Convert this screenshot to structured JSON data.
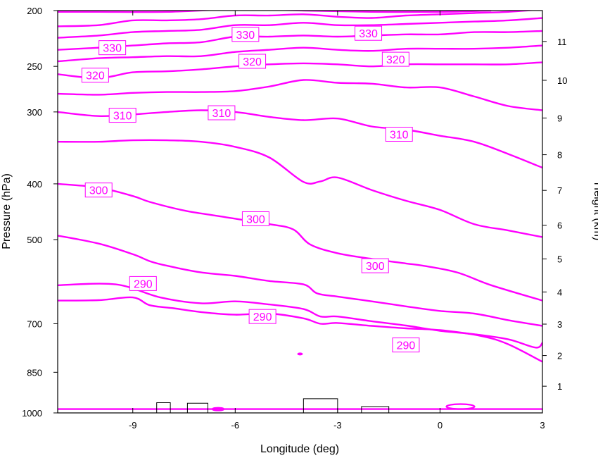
{
  "chart_data": {
    "type": "line",
    "plot": "contour",
    "xlabel": "Longitude (deg)",
    "ylabel_left": "Pressure (hPa)",
    "ylabel_right": "Height (km)",
    "xlim": [
      -11.2,
      3
    ],
    "ylim_pressure": [
      1000,
      200
    ],
    "y_scale": "log pressure",
    "x_ticks": [
      -9,
      -6,
      -3,
      0,
      3
    ],
    "pressure_ticks": [
      200,
      250,
      300,
      400,
      500,
      700,
      850,
      1000
    ],
    "height_ticks": [
      1,
      2,
      3,
      4,
      5,
      6,
      7,
      8,
      9,
      10,
      11
    ],
    "grid": false,
    "line_color": "#ff00ff",
    "terrain_color": "#000000",
    "series": [
      {
        "values": [
          [
            -11.2,
            985
          ],
          [
            -9,
            985
          ],
          [
            -6,
            985
          ],
          [
            -3,
            985
          ],
          [
            0,
            985
          ],
          [
            3,
            985
          ]
        ]
      },
      {
        "values": [
          [
            -11.2,
            638
          ],
          [
            -10,
            637
          ],
          [
            -9,
            630
          ],
          [
            -8.5,
            650
          ],
          [
            -7.8,
            658
          ],
          [
            -7,
            668
          ],
          [
            -6,
            675
          ],
          [
            -5,
            672
          ],
          [
            -4,
            685
          ],
          [
            -3.5,
            700
          ],
          [
            -3,
            698
          ],
          [
            -2,
            706
          ],
          [
            -1,
            713
          ],
          [
            0,
            718
          ],
          [
            1.2,
            735
          ],
          [
            2,
            760
          ],
          [
            3,
            815
          ]
        ]
      },
      {
        "values": [
          [
            -11.2,
            600
          ],
          [
            -9.5,
            598
          ],
          [
            -8.2,
            630
          ],
          [
            -7,
            645
          ],
          [
            -6,
            640
          ],
          [
            -5,
            648
          ],
          [
            -4,
            660
          ],
          [
            -3.5,
            680
          ],
          [
            -3,
            680
          ],
          [
            -2,
            693
          ],
          [
            -1,
            705
          ],
          [
            0,
            720
          ],
          [
            1,
            730
          ],
          [
            2,
            745
          ],
          [
            2.8,
            770
          ],
          [
            3,
            755
          ]
        ]
      },
      {
        "values": [
          [
            -11.2,
            492
          ],
          [
            -10,
            508
          ],
          [
            -9,
            530
          ],
          [
            -8.5,
            545
          ],
          [
            -8,
            555
          ],
          [
            -7,
            570
          ],
          [
            -6,
            578
          ],
          [
            -5,
            590
          ],
          [
            -4,
            598
          ],
          [
            -3.6,
            620
          ],
          [
            -3,
            628
          ],
          [
            -2,
            640
          ],
          [
            -1,
            653
          ],
          [
            0,
            665
          ],
          [
            1,
            672
          ],
          [
            2,
            690
          ],
          [
            3,
            706
          ]
        ]
      },
      {
        "values": [
          [
            -11.2,
            400
          ],
          [
            -10,
            406
          ],
          [
            -9,
            420
          ],
          [
            -8.5,
            430
          ],
          [
            -7.5,
            445
          ],
          [
            -6.5,
            455
          ],
          [
            -5,
            470
          ],
          [
            -4.3,
            480
          ],
          [
            -3.8,
            510
          ],
          [
            -3,
            528
          ],
          [
            -2,
            540
          ],
          [
            -1,
            550
          ],
          [
            -0.5,
            555
          ],
          [
            0.5,
            570
          ],
          [
            1.5,
            600
          ],
          [
            3,
            638
          ]
        ]
      },
      {
        "values": [
          [
            -11.2,
            338
          ],
          [
            -10,
            338
          ],
          [
            -9,
            336
          ],
          [
            -8,
            336
          ],
          [
            -7,
            338
          ],
          [
            -6,
            345
          ],
          [
            -5,
            360
          ],
          [
            -4,
            397
          ],
          [
            -3.5,
            396
          ],
          [
            -3,
            390
          ],
          [
            -2,
            410
          ],
          [
            -1,
            428
          ],
          [
            0,
            444
          ],
          [
            1,
            470
          ],
          [
            2,
            482
          ],
          [
            3,
            495
          ]
        ]
      },
      {
        "values": [
          [
            -11.2,
            300
          ],
          [
            -10,
            305
          ],
          [
            -9,
            303
          ],
          [
            -8,
            300
          ],
          [
            -7,
            298
          ],
          [
            -6,
            300
          ],
          [
            -5,
            306
          ],
          [
            -4,
            310
          ],
          [
            -3,
            308
          ],
          [
            -2,
            318
          ],
          [
            -1,
            322
          ],
          [
            0,
            330
          ],
          [
            1,
            338
          ],
          [
            2,
            355
          ],
          [
            3,
            375
          ]
        ]
      },
      {
        "values": [
          [
            -11.2,
            279
          ],
          [
            -10,
            280
          ],
          [
            -9,
            278
          ],
          [
            -8,
            277
          ],
          [
            -7,
            277
          ],
          [
            -6,
            276
          ],
          [
            -5,
            271
          ],
          [
            -4,
            264
          ],
          [
            -3,
            267
          ],
          [
            -2,
            268
          ],
          [
            -1,
            272
          ],
          [
            0,
            272
          ],
          [
            1,
            282
          ],
          [
            2,
            293
          ],
          [
            3,
            298
          ]
        ]
      },
      {
        "values": [
          [
            -11.2,
            258
          ],
          [
            -10,
            262
          ],
          [
            -9,
            256
          ],
          [
            -8,
            255
          ],
          [
            -7,
            253
          ],
          [
            -6,
            250
          ],
          [
            -5,
            248
          ],
          [
            -4,
            247
          ],
          [
            -3,
            248
          ],
          [
            -2,
            250
          ],
          [
            -1,
            248
          ],
          [
            0,
            248
          ],
          [
            1,
            248
          ],
          [
            2,
            248
          ],
          [
            3,
            246
          ]
        ]
      },
      {
        "values": [
          [
            -11.2,
            245
          ],
          [
            -10,
            242
          ],
          [
            -9,
            241
          ],
          [
            -8,
            240
          ],
          [
            -7,
            240
          ],
          [
            -6,
            236
          ],
          [
            -5,
            234
          ],
          [
            -4,
            232
          ],
          [
            -3,
            234
          ],
          [
            -2,
            235
          ],
          [
            -1,
            233
          ],
          [
            0,
            233
          ],
          [
            1,
            233
          ],
          [
            2,
            232
          ],
          [
            3,
            230
          ]
        ]
      },
      {
        "values": [
          [
            -11.2,
            234
          ],
          [
            -10,
            232
          ],
          [
            -9,
            230
          ],
          [
            -8,
            228
          ],
          [
            -7,
            227
          ],
          [
            -6,
            222
          ],
          [
            -5,
            222
          ],
          [
            -4,
            221
          ],
          [
            -3,
            222
          ],
          [
            -2,
            221
          ],
          [
            -1,
            220
          ],
          [
            0,
            220
          ],
          [
            1,
            218
          ],
          [
            2,
            218
          ],
          [
            3,
            217
          ]
        ]
      },
      {
        "values": [
          [
            -11.2,
            223
          ],
          [
            -10,
            221
          ],
          [
            -9,
            218
          ],
          [
            -8,
            217
          ],
          [
            -7,
            216
          ],
          [
            -6,
            212
          ],
          [
            -5,
            212
          ],
          [
            -4,
            210
          ],
          [
            -3,
            212
          ],
          [
            -2,
            212
          ],
          [
            -1,
            211
          ],
          [
            0,
            210
          ],
          [
            1,
            209
          ],
          [
            2,
            208
          ],
          [
            3,
            206
          ]
        ]
      },
      {
        "values": [
          [
            -11.2,
            213
          ],
          [
            -10,
            212
          ],
          [
            -9,
            208
          ],
          [
            -8,
            208
          ],
          [
            -7,
            207
          ],
          [
            -6,
            204
          ],
          [
            -5,
            204
          ],
          [
            -4,
            203
          ],
          [
            -3,
            205
          ],
          [
            -2,
            206
          ],
          [
            -1,
            204
          ],
          [
            0,
            203
          ],
          [
            1,
            202
          ],
          [
            2,
            201
          ],
          [
            3,
            199
          ]
        ]
      },
      {
        "values": [
          [
            -11.2,
            201
          ],
          [
            -10,
            201
          ],
          [
            -8,
            201
          ],
          [
            -6,
            199
          ],
          [
            -4,
            200
          ],
          [
            -2,
            201
          ],
          [
            0,
            201
          ],
          [
            1.5,
            200
          ]
        ]
      }
    ],
    "labels": [
      {
        "text": "290",
        "x": -8.7,
        "y": 596
      },
      {
        "text": "290",
        "x": -5.2,
        "y": 680
      },
      {
        "text": "290",
        "x": -1.0,
        "y": 762
      },
      {
        "text": "300",
        "x": -10.0,
        "y": 410
      },
      {
        "text": "300",
        "x": -5.4,
        "y": 460
      },
      {
        "text": "300",
        "x": -1.9,
        "y": 555
      },
      {
        "text": "310",
        "x": -9.3,
        "y": 304
      },
      {
        "text": "310",
        "x": -6.4,
        "y": 301
      },
      {
        "text": "310",
        "x": -1.2,
        "y": 328
      },
      {
        "text": "320",
        "x": -10.1,
        "y": 259
      },
      {
        "text": "320",
        "x": -5.5,
        "y": 245
      },
      {
        "text": "320",
        "x": -1.3,
        "y": 243
      },
      {
        "text": "330",
        "x": -9.6,
        "y": 232
      },
      {
        "text": "330",
        "x": -5.7,
        "y": 220
      },
      {
        "text": "330",
        "x": -2.1,
        "y": 219
      }
    ]
  }
}
